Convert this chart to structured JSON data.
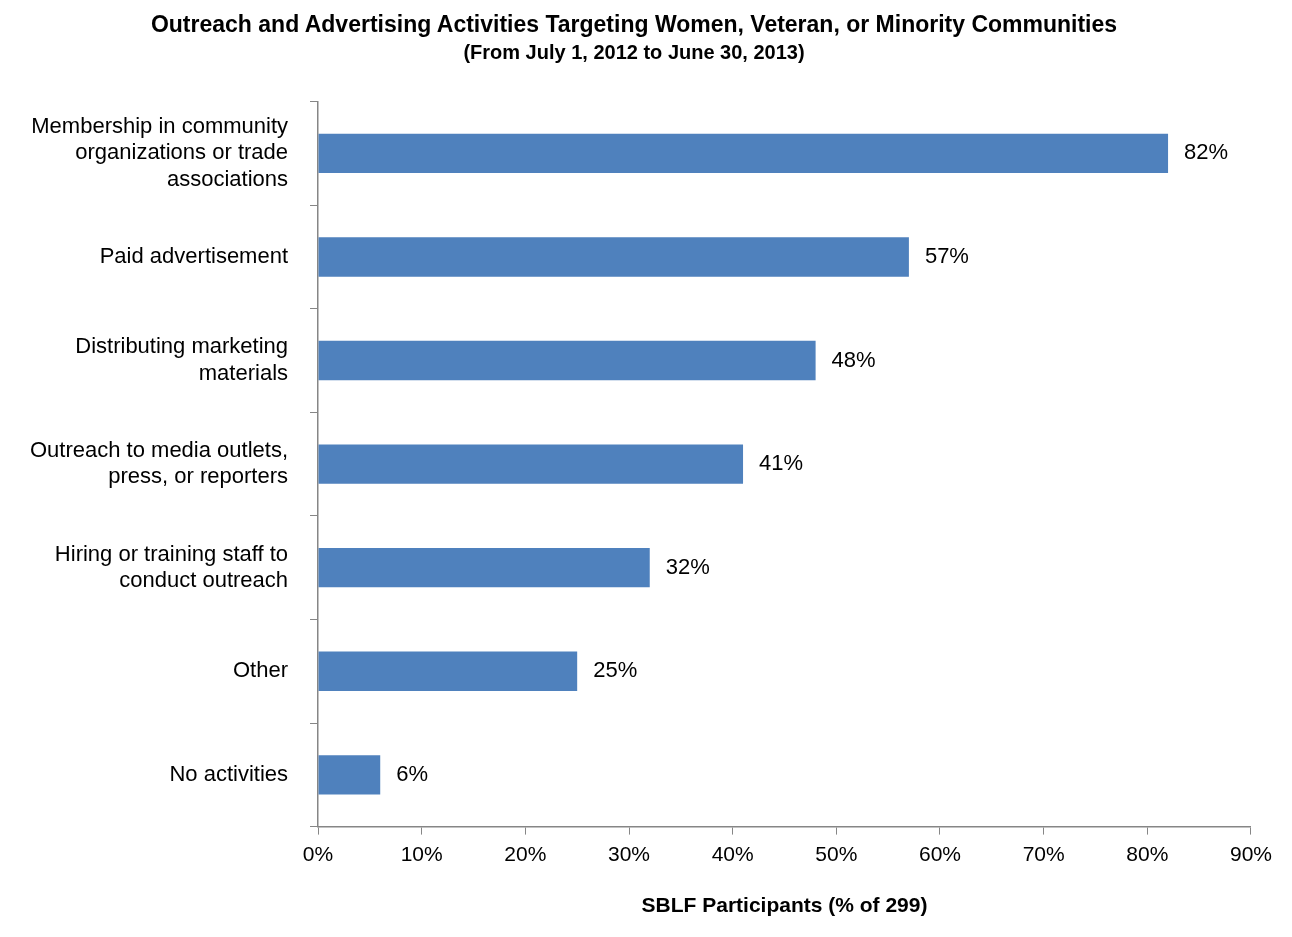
{
  "chart_data": {
    "type": "bar",
    "orientation": "horizontal",
    "title": "Outreach and Advertising Activities Targeting Women, Veteran, or Minority Communities",
    "subtitle": "(From July 1, 2012 to June 30, 2013)",
    "xlabel": "SBLF Participants (% of 299)",
    "categories": [
      "Membership in community organizations or trade associations",
      "Paid advertisement",
      "Distributing marketing materials",
      "Outreach to media outlets, press, or reporters",
      "Hiring or training staff to conduct outreach",
      "Other",
      "No activities"
    ],
    "values": [
      82,
      57,
      48,
      41,
      32,
      25,
      6
    ],
    "value_labels": [
      "82%",
      "57%",
      "48%",
      "41%",
      "32%",
      "25%",
      "6%"
    ],
    "color": "#4f81bd",
    "xlim": [
      0,
      90
    ],
    "xticks": [
      {
        "value": 0,
        "label": "0%"
      },
      {
        "value": 10,
        "label": "10%"
      },
      {
        "value": 20,
        "label": "20%"
      },
      {
        "value": 30,
        "label": "30%"
      },
      {
        "value": 40,
        "label": "40%"
      },
      {
        "value": 50,
        "label": "50%"
      },
      {
        "value": 60,
        "label": "60%"
      },
      {
        "value": 70,
        "label": "70%"
      },
      {
        "value": 80,
        "label": "80%"
      },
      {
        "value": 90,
        "label": "90%"
      }
    ],
    "grid": false,
    "legend": false
  }
}
